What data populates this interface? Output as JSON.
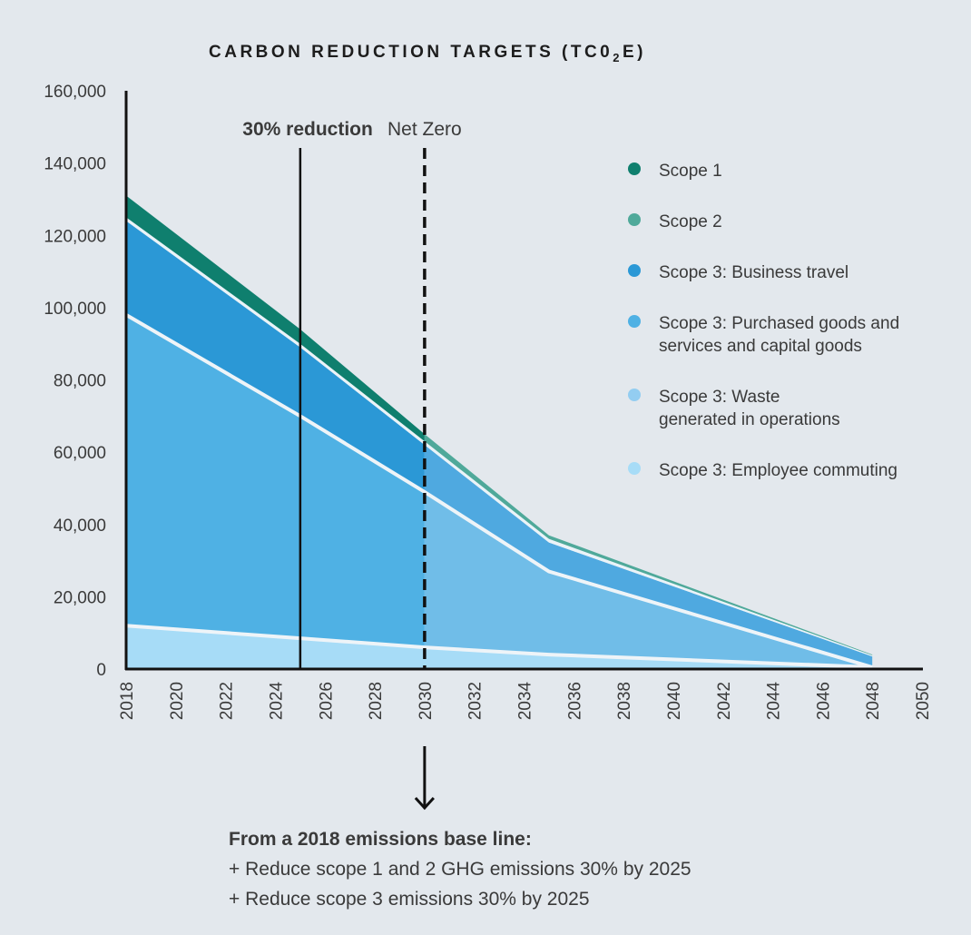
{
  "chart_data": {
    "type": "area",
    "title": "CARBON REDUCTION TARGETS (TC0",
    "title_sub": "2",
    "title_end": "E)",
    "xlim": [
      2018,
      2050
    ],
    "ylim": [
      0,
      160000
    ],
    "x_ticks": [
      "2018",
      "2020",
      "2022",
      "2024",
      "2026",
      "2028",
      "2030",
      "2032",
      "2034",
      "2036",
      "2038",
      "2040",
      "2042",
      "2044",
      "2046",
      "2048",
      "2050"
    ],
    "y_ticks": [
      "0",
      "20,000",
      "40,000",
      "60,000",
      "80,000",
      "100,000",
      "120,000",
      "140,000",
      "160,000"
    ],
    "y_tick_values": [
      0,
      20000,
      40000,
      60000,
      80000,
      100000,
      120000,
      140000,
      160000
    ],
    "grid": false,
    "legend_position": "right",
    "x": [
      2018,
      2025,
      2030,
      2035,
      2048
    ],
    "cumulative_boundaries": [
      {
        "name": "Scope 3: Employee commuting",
        "values": [
          12000,
          8500,
          6000,
          4000,
          500
        ]
      },
      {
        "name": "Scope 3: Purchased goods and services and capital goods",
        "values": [
          98000,
          70000,
          49000,
          27000,
          500
        ]
      },
      {
        "name": "Scope 3: Business travel",
        "values": [
          124000,
          89000,
          62000,
          35000,
          3500
        ]
      },
      {
        "name": "Scope 2",
        "values": [
          125000,
          90000,
          63000,
          36000,
          3800
        ]
      },
      {
        "name": "Scope 1",
        "values": [
          131000,
          94000,
          65000,
          37000,
          4000
        ]
      }
    ],
    "series": [
      {
        "name": "Scope 1",
        "color": "#0f7f6e"
      },
      {
        "name": "Scope 2",
        "color": "#4fa99a"
      },
      {
        "name": "Scope 3: Business travel",
        "color": "#2b98d6"
      },
      {
        "name": "Scope 3: Purchased goods and services and capital goods",
        "color": "#4fb1e4"
      },
      {
        "name": "Scope 3: Waste generated in operations",
        "color": "#93cdf1"
      },
      {
        "name": "Scope 3: Employee commuting",
        "color": "#a7dcf7"
      }
    ],
    "region_colors_after_net_zero": {
      "band_business_travel": "#4fa9e0",
      "band_purchased_goods": "#70bde8"
    },
    "legend": [
      {
        "lines": [
          "Scope 1"
        ],
        "color": "#0f7f6e"
      },
      {
        "lines": [
          "Scope 2"
        ],
        "color": "#4fa99a"
      },
      {
        "lines": [
          "Scope 3: Business travel"
        ],
        "color": "#2b98d6"
      },
      {
        "lines": [
          "Scope 3: Purchased goods and",
          "services and capital goods"
        ],
        "color": "#4fb1e4"
      },
      {
        "lines": [
          "Scope 3: Waste",
          "generated in operations"
        ],
        "color": "#93cdf1"
      },
      {
        "lines": [
          "Scope 3: Employee commuting"
        ],
        "color": "#a7dcf7"
      }
    ],
    "annotations": [
      {
        "label": "30% reduction",
        "x": 2025,
        "style": "solid",
        "bold": true
      },
      {
        "label": "Net Zero",
        "x": 2030,
        "style": "dashed",
        "bold": false
      }
    ]
  },
  "footer": {
    "heading": "From a 2018 emissions base line:",
    "lines": [
      "+ Reduce scope 1 and 2 GHG emissions 30% by 2025",
      "+ Reduce scope 3 emissions 30% by 2025"
    ]
  }
}
